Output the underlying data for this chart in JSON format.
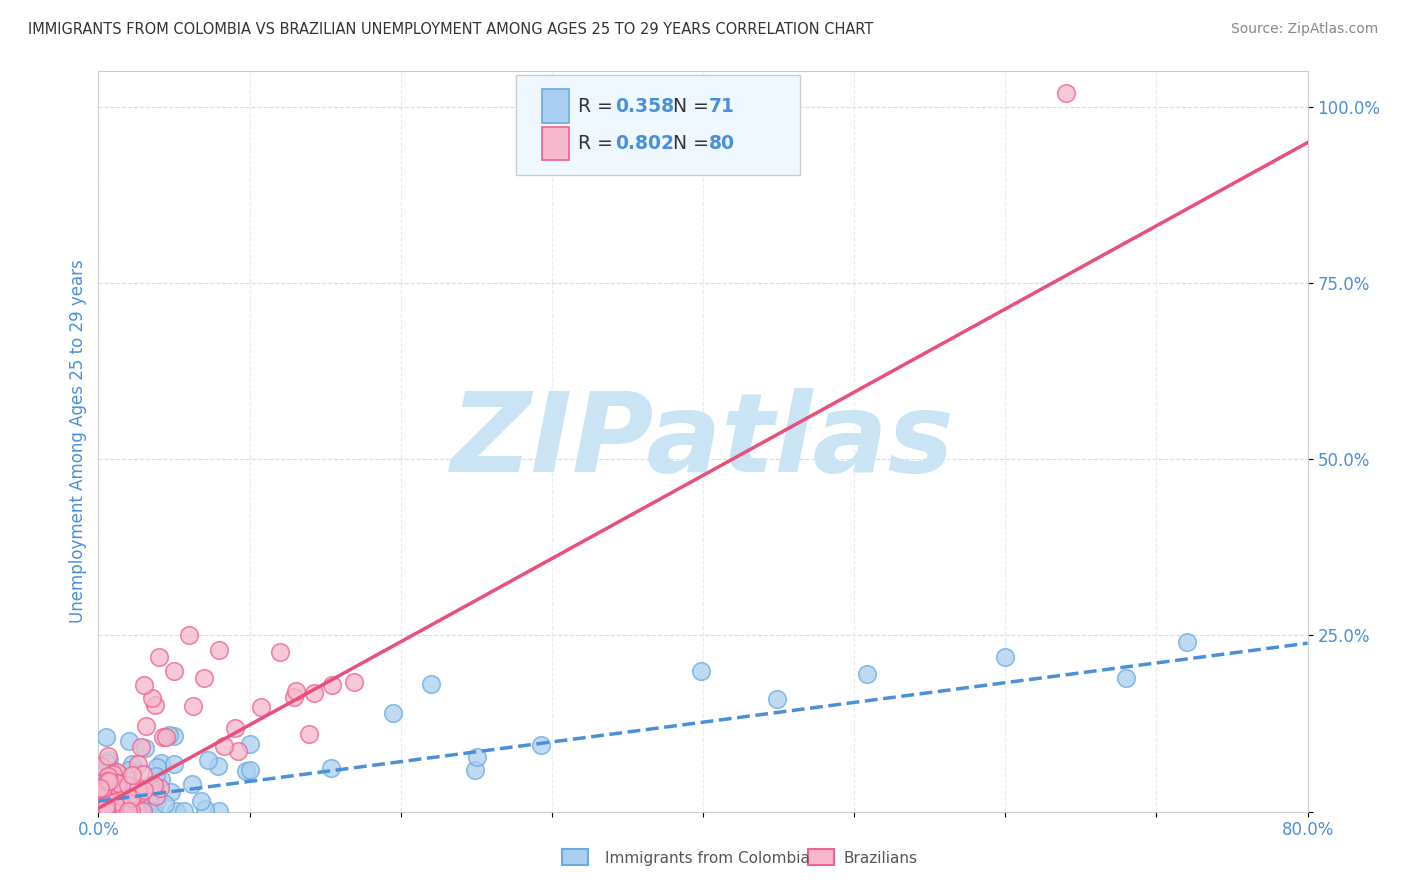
{
  "title": "IMMIGRANTS FROM COLOMBIA VS BRAZILIAN UNEMPLOYMENT AMONG AGES 25 TO 29 YEARS CORRELATION CHART",
  "source": "Source: ZipAtlas.com",
  "ylabel": "Unemployment Among Ages 25 to 29 years",
  "xlim": [
    0.0,
    0.8
  ],
  "ylim": [
    0.0,
    1.05
  ],
  "ytick_positions": [
    0.0,
    0.25,
    0.5,
    0.75,
    1.0
  ],
  "ytick_labels_right": [
    "",
    "25.0%",
    "50.0%",
    "75.0%",
    "100.0%"
  ],
  "xtick_positions": [
    0.0,
    0.1,
    0.2,
    0.3,
    0.4,
    0.5,
    0.6,
    0.7,
    0.8
  ],
  "xtick_labels": [
    "0.0%",
    "",
    "",
    "",
    "",
    "",
    "",
    "",
    "80.0%"
  ],
  "colombia_R": 0.358,
  "colombia_N": 71,
  "brazil_R": 0.802,
  "brazil_N": 80,
  "colombia_scatter_color": "#aacff0",
  "colombia_edge_color": "#6aaade",
  "brazil_scatter_color": "#f5b8cc",
  "brazil_edge_color": "#f06090",
  "colombia_line_color": "#4a90d9",
  "brazil_line_color": "#e8507a",
  "watermark_text": "ZIPatlas",
  "watermark_color": "#c8e4f5",
  "legend_bg_color": "#f0f8ff",
  "legend_border_color": "#cccccc",
  "background_color": "#ffffff",
  "grid_color": "#d8d8d8",
  "title_color": "#333333",
  "ylabel_color": "#4a90d9",
  "tick_color": "#4a90d9",
  "legend_R_color": "#4a90d9",
  "legend_N_color": "#4a90d9",
  "legend_text_color": "#333333",
  "bottom_legend_text_color": "#555555",
  "col_line_slope": 0.28,
  "col_line_intercept": 0.015,
  "bra_line_slope": 1.18,
  "bra_line_intercept": 0.005
}
